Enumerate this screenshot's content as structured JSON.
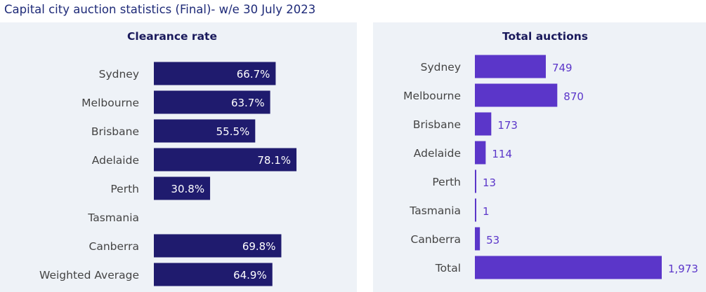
{
  "page_title": "Capital city auction statistics (Final)- w/e 30 July 2023",
  "chart_data": [
    {
      "type": "bar",
      "orientation": "horizontal",
      "title": "Clearance rate",
      "categories": [
        "Sydney",
        "Melbourne",
        "Brisbane",
        "Adelaide",
        "Perth",
        "Tasmania",
        "Canberra",
        "Weighted Average"
      ],
      "values": [
        66.7,
        63.7,
        55.5,
        78.1,
        30.8,
        null,
        69.8,
        64.9
      ],
      "labels": [
        "66.7%",
        "63.7%",
        "55.5%",
        "78.1%",
        "30.8%",
        "",
        "69.8%",
        "64.9%"
      ],
      "unit": "%",
      "xlim": [
        0,
        100
      ],
      "color": "#1f1b6e",
      "label_color": "#ffffff",
      "grid": false
    },
    {
      "type": "bar",
      "orientation": "horizontal",
      "title": "Total auctions",
      "categories": [
        "Sydney",
        "Melbourne",
        "Brisbane",
        "Adelaide",
        "Perth",
        "Tasmania",
        "Canberra",
        "Total"
      ],
      "values": [
        749,
        870,
        173,
        114,
        13,
        1,
        53,
        1973
      ],
      "labels": [
        "749",
        "870",
        "173",
        "114",
        "13",
        "1",
        "53",
        "1,973"
      ],
      "xlim": [
        0,
        1973
      ],
      "color": "#5b36c9",
      "label_color": "#5b36c9",
      "grid": false
    }
  ]
}
